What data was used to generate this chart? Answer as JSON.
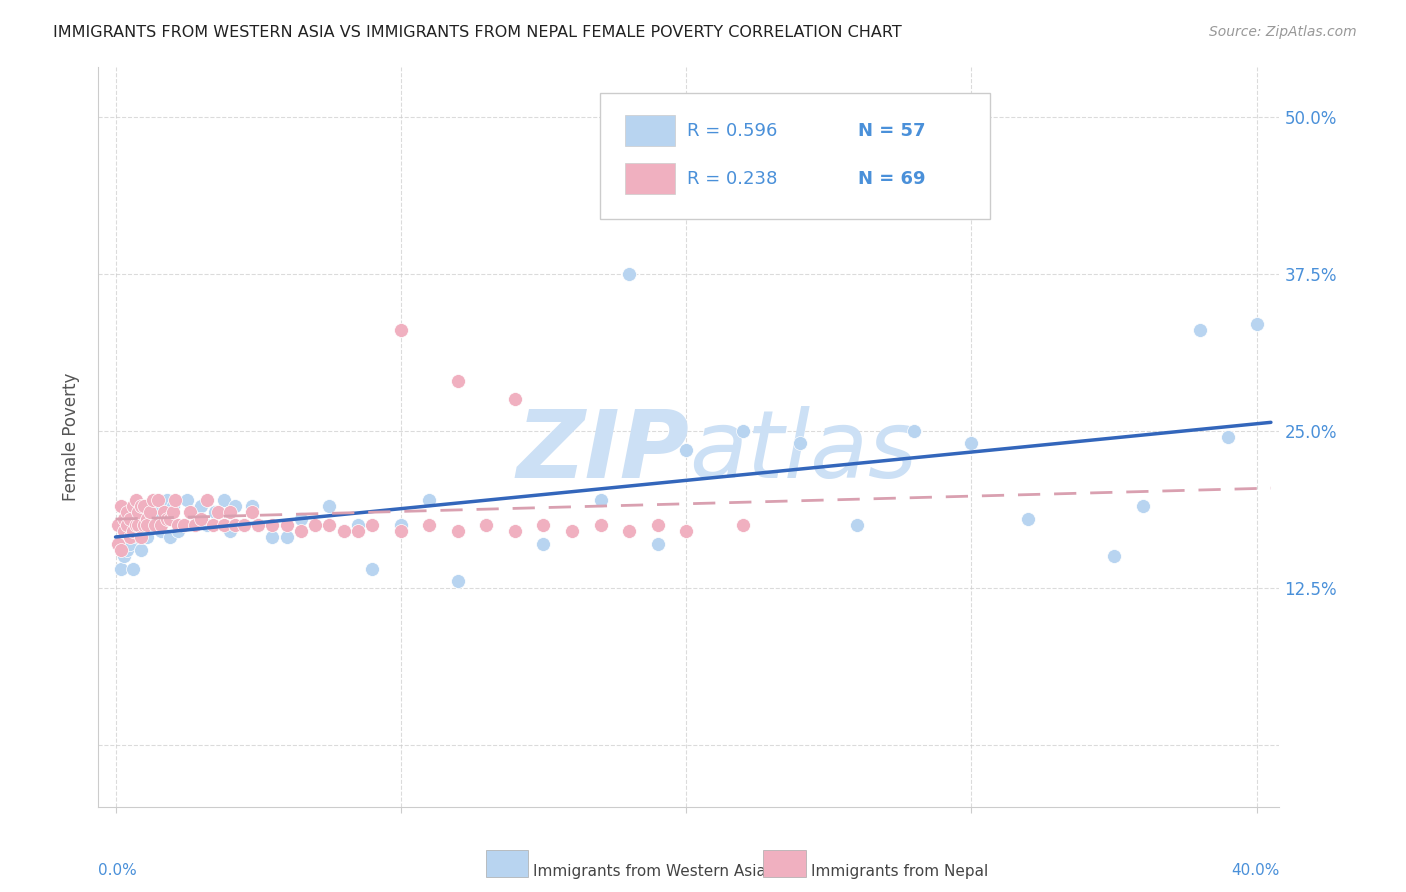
{
  "title": "IMMIGRANTS FROM WESTERN ASIA VS IMMIGRANTS FROM NEPAL FEMALE POVERTY CORRELATION CHART",
  "source": "Source: ZipAtlas.com",
  "ylabel": "Female Poverty",
  "y_tick_values": [
    0.125,
    0.25,
    0.375,
    0.5
  ],
  "y_tick_labels": [
    "12.5%",
    "25.0%",
    "37.5%",
    "50.0%"
  ],
  "x_range": [
    0.0,
    0.4
  ],
  "y_range": [
    -0.05,
    0.54
  ],
  "legend_r1": "R = 0.596",
  "legend_n1": "N = 57",
  "legend_r2": "R = 0.238",
  "legend_n2": "N = 69",
  "color_blue_dot": "#b8d4f0",
  "color_blue_line": "#3366bb",
  "color_pink_dot": "#f0b0c0",
  "color_pink_line": "#d9a0b0",
  "color_legend_text": "#4a90d9",
  "color_right_axis_text": "#4a90d9",
  "watermark_color": "#cce0f5",
  "grid_color": "#cccccc",
  "bottom_label1": "Immigrants from Western Asia",
  "bottom_label2": "Immigrants from Nepal",
  "blue_x": [
    0.002,
    0.003,
    0.004,
    0.005,
    0.006,
    0.007,
    0.008,
    0.009,
    0.01,
    0.011,
    0.012,
    0.013,
    0.015,
    0.016,
    0.018,
    0.019,
    0.02,
    0.022,
    0.025,
    0.027,
    0.03,
    0.032,
    0.035,
    0.038,
    0.04,
    0.042,
    0.045,
    0.048,
    0.05,
    0.055,
    0.06,
    0.065,
    0.07,
    0.075,
    0.08,
    0.085,
    0.09,
    0.1,
    0.11,
    0.12,
    0.13,
    0.15,
    0.17,
    0.18,
    0.19,
    0.2,
    0.22,
    0.24,
    0.26,
    0.28,
    0.3,
    0.32,
    0.35,
    0.36,
    0.38,
    0.39,
    0.4
  ],
  "blue_y": [
    0.14,
    0.15,
    0.155,
    0.16,
    0.14,
    0.17,
    0.165,
    0.155,
    0.18,
    0.165,
    0.175,
    0.19,
    0.185,
    0.17,
    0.195,
    0.165,
    0.19,
    0.17,
    0.195,
    0.185,
    0.19,
    0.175,
    0.185,
    0.195,
    0.17,
    0.19,
    0.175,
    0.19,
    0.175,
    0.165,
    0.165,
    0.18,
    0.175,
    0.19,
    0.17,
    0.175,
    0.14,
    0.175,
    0.195,
    0.13,
    0.175,
    0.16,
    0.195,
    0.375,
    0.16,
    0.235,
    0.25,
    0.24,
    0.175,
    0.25,
    0.24,
    0.18,
    0.15,
    0.19,
    0.33,
    0.245,
    0.335
  ],
  "pink_x": [
    0.001,
    0.001,
    0.002,
    0.002,
    0.003,
    0.003,
    0.004,
    0.004,
    0.005,
    0.005,
    0.006,
    0.006,
    0.007,
    0.007,
    0.008,
    0.008,
    0.009,
    0.009,
    0.01,
    0.01,
    0.011,
    0.011,
    0.012,
    0.013,
    0.014,
    0.015,
    0.016,
    0.017,
    0.018,
    0.019,
    0.02,
    0.021,
    0.022,
    0.024,
    0.026,
    0.028,
    0.03,
    0.032,
    0.034,
    0.036,
    0.038,
    0.04,
    0.042,
    0.045,
    0.048,
    0.05,
    0.055,
    0.06,
    0.065,
    0.07,
    0.075,
    0.08,
    0.085,
    0.09,
    0.1,
    0.11,
    0.12,
    0.13,
    0.14,
    0.15,
    0.16,
    0.17,
    0.18,
    0.19,
    0.2,
    0.22,
    0.1,
    0.12,
    0.14
  ],
  "pink_y": [
    0.16,
    0.175,
    0.155,
    0.19,
    0.18,
    0.17,
    0.185,
    0.175,
    0.165,
    0.18,
    0.17,
    0.19,
    0.175,
    0.195,
    0.175,
    0.185,
    0.19,
    0.165,
    0.175,
    0.19,
    0.18,
    0.175,
    0.185,
    0.195,
    0.175,
    0.195,
    0.175,
    0.185,
    0.18,
    0.18,
    0.185,
    0.195,
    0.175,
    0.175,
    0.185,
    0.175,
    0.18,
    0.195,
    0.175,
    0.185,
    0.175,
    0.185,
    0.175,
    0.175,
    0.185,
    0.175,
    0.175,
    0.175,
    0.17,
    0.175,
    0.175,
    0.17,
    0.17,
    0.175,
    0.17,
    0.175,
    0.17,
    0.175,
    0.17,
    0.175,
    0.17,
    0.175,
    0.17,
    0.175,
    0.17,
    0.175,
    0.33,
    0.29,
    0.275
  ]
}
